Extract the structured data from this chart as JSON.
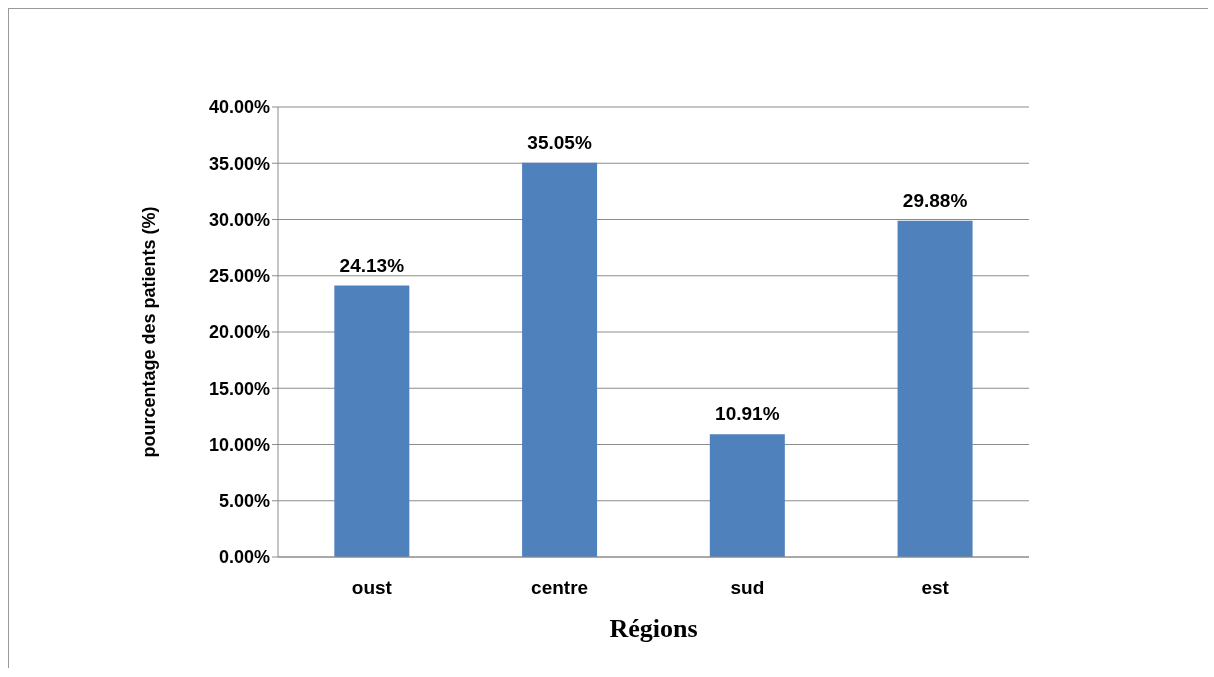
{
  "chart_data": {
    "type": "bar",
    "xlabel": "Régions",
    "ylabel": "pourcentage  des patients (%)",
    "categories": [
      "oust",
      "centre",
      "sud",
      "est"
    ],
    "values": [
      24.13,
      35.05,
      10.91,
      29.88
    ],
    "value_labels": [
      "24.13%",
      "35.05%",
      "10.91%",
      "29.88%"
    ],
    "color": "#4f81bd",
    "ylim": [
      0,
      40
    ],
    "yticks": [
      {
        "value": 0,
        "label": "0.00%"
      },
      {
        "value": 5,
        "label": "5.00%"
      },
      {
        "value": 10,
        "label": "10.00%"
      },
      {
        "value": 15,
        "label": "15.00%"
      },
      {
        "value": 20,
        "label": "20.00%"
      },
      {
        "value": 25,
        "label": "25.00%"
      },
      {
        "value": 30,
        "label": "30.00%"
      },
      {
        "value": 35,
        "label": "35.00%"
      },
      {
        "value": 40,
        "label": "40.00%"
      }
    ],
    "grid": "y",
    "legend": false
  }
}
